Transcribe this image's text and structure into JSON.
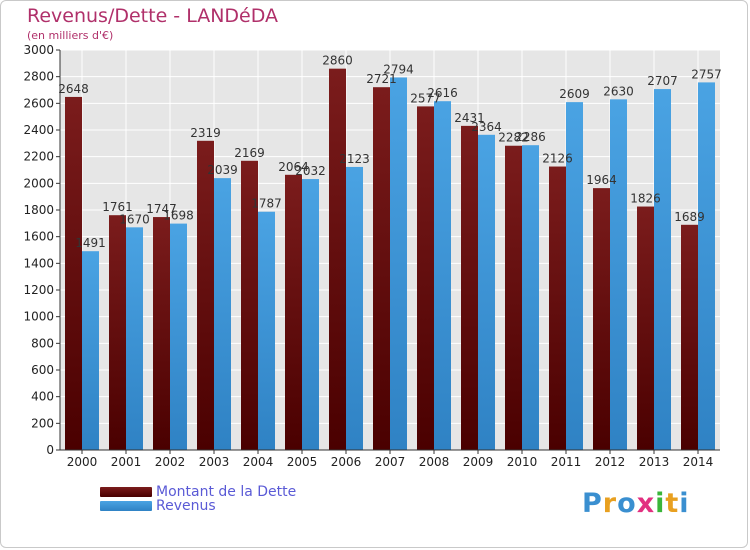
{
  "header": {
    "title": "Revenus/Dette - LANDéDA",
    "subtitle": "(en milliers d'€)"
  },
  "legend": {
    "dette_label": "Montant de la Dette",
    "revenus_label": "Revenus"
  },
  "logo": {
    "text": "Proxiti",
    "colors": [
      "#3a8fd0",
      "#e8a020",
      "#3a8fd0",
      "#e23080",
      "#3ab53a",
      "#e8a020",
      "#3a8fd0"
    ]
  },
  "colors": {
    "dette": "#7b1c1c",
    "dette_dark": "#4a0000",
    "revenus": "#4aa3e3",
    "revenus_dark": "#2f82c4",
    "plot_bg": "#e6e6e6",
    "grid": "#ffffff",
    "title": "#b0306a"
  },
  "chart_data": {
    "type": "bar",
    "title": "Revenus/Dette - LANDéDA",
    "subtitle": "(en milliers d'€)",
    "categories": [
      "2000",
      "2001",
      "2002",
      "2003",
      "2004",
      "2005",
      "2006",
      "2007",
      "2008",
      "2009",
      "2010",
      "2011",
      "2012",
      "2013",
      "2014"
    ],
    "series": [
      {
        "name": "Montant de la Dette",
        "values": [
          2648,
          1761,
          1747,
          2319,
          2169,
          2064,
          2860,
          2721,
          2577,
          2431,
          2282,
          2126,
          1964,
          1826,
          1689
        ]
      },
      {
        "name": "Revenus",
        "values": [
          1491,
          1670,
          1698,
          2039,
          1787,
          2032,
          2123,
          2794,
          2616,
          2364,
          2286,
          2609,
          2630,
          2707,
          2757
        ]
      }
    ],
    "ylim": [
      0,
      3000
    ],
    "ytick_step": 200,
    "grid": true,
    "legend_position": "bottom-left"
  }
}
